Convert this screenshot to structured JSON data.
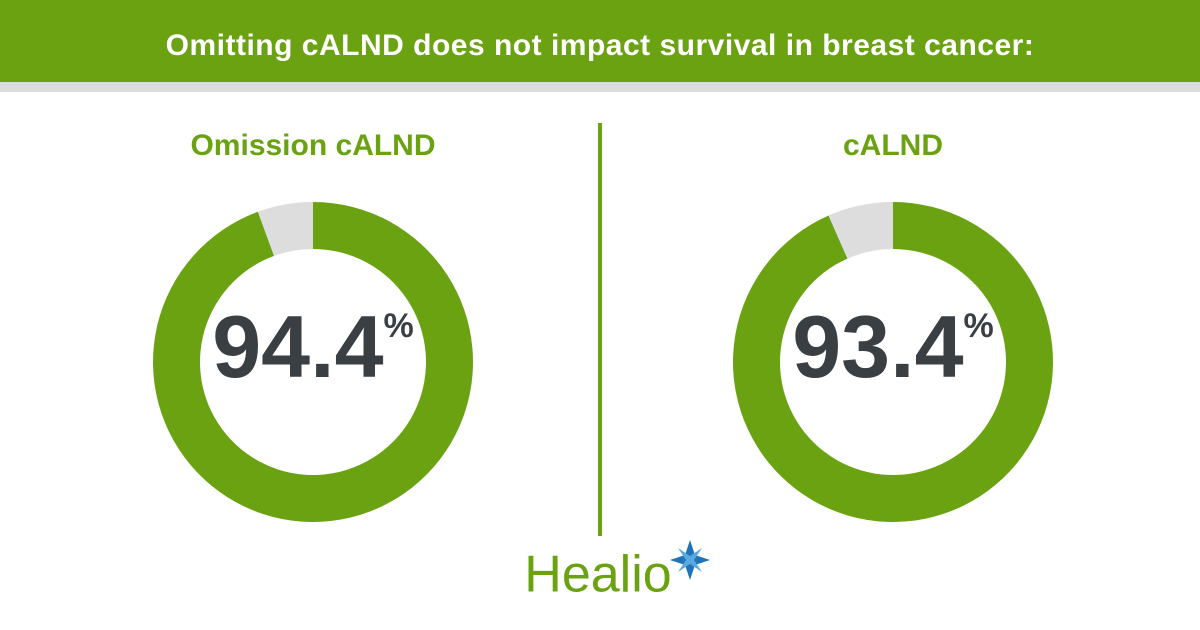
{
  "title": "Omitting cALND does not impact survival in breast cancer:",
  "logo": "Healio",
  "chart_data": [
    {
      "type": "donut",
      "title": "Omission cALND",
      "values": [
        94.4,
        5.6
      ],
      "value_labels": [
        "94.4%",
        null
      ],
      "colors": [
        "#6aa212",
        "#dddddd"
      ]
    },
    {
      "type": "donut",
      "title": "cALND",
      "values": [
        93.4,
        6.6
      ],
      "value_labels": [
        "93.4%",
        null
      ],
      "colors": [
        "#6aa212",
        "#dddddd"
      ]
    }
  ]
}
